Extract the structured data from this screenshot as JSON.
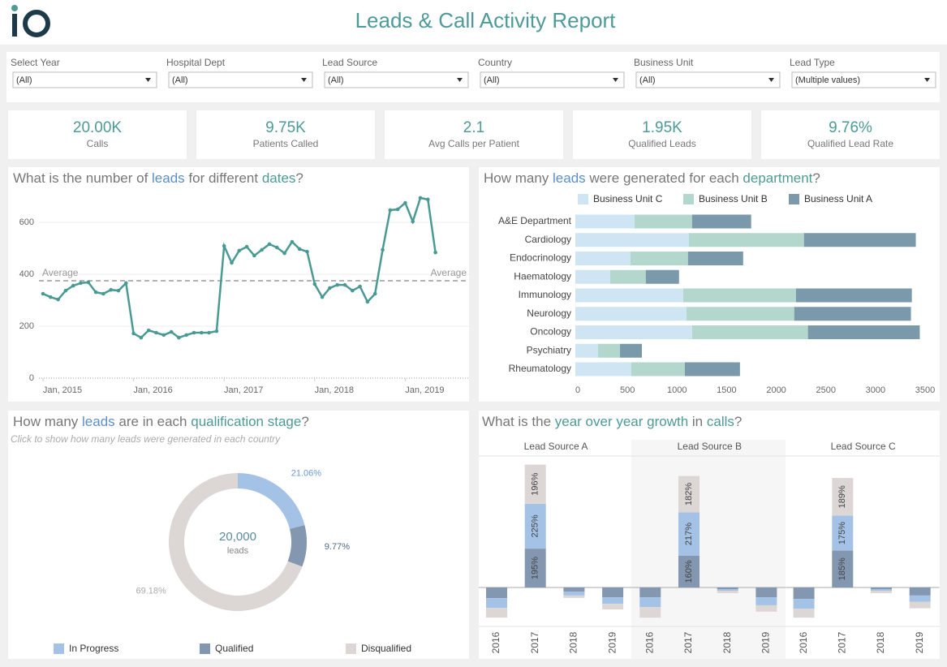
{
  "header": {
    "title": "Leads & Call Activity Report"
  },
  "filters": [
    {
      "label": "Select Year",
      "value": "(All)"
    },
    {
      "label": "Hospital Dept",
      "value": "(All)"
    },
    {
      "label": "Lead Source",
      "value": "(All)"
    },
    {
      "label": "Country",
      "value": "(All)"
    },
    {
      "label": "Business Unit",
      "value": "(All)"
    },
    {
      "label": "Lead Type",
      "value": "(Multiple values)"
    }
  ],
  "kpis": [
    {
      "value": "20.00K",
      "label": "Calls"
    },
    {
      "value": "9.75K",
      "label": "Patients Called"
    },
    {
      "value": "2.1",
      "label": "Avg Calls per Patient"
    },
    {
      "value": "1.95K",
      "label": "Qualified Leads"
    },
    {
      "value": "9.76%",
      "label": "Qualified Lead Rate"
    }
  ],
  "chart_data": [
    {
      "type": "line",
      "title_parts": [
        {
          "text": "What is the number of "
        },
        {
          "text": "leads",
          "color": "#5b8fc9"
        },
        {
          "text": " for different "
        },
        {
          "text": "dates",
          "color": "#4e9a98"
        },
        {
          "text": "?"
        }
      ],
      "x": [
        "2015-01",
        "2015-02",
        "2015-03",
        "2015-04",
        "2015-05",
        "2015-06",
        "2015-07",
        "2015-08",
        "2015-09",
        "2015-10",
        "2015-11",
        "2015-12",
        "2016-01",
        "2016-02",
        "2016-03",
        "2016-04",
        "2016-05",
        "2016-06",
        "2016-07",
        "2016-08",
        "2016-09",
        "2016-10",
        "2016-11",
        "2016-12",
        "2017-01",
        "2017-02",
        "2017-03",
        "2017-04",
        "2017-05",
        "2017-06",
        "2017-07",
        "2017-08",
        "2017-09",
        "2017-10",
        "2017-11",
        "2017-12",
        "2018-01",
        "2018-02",
        "2018-03",
        "2018-04",
        "2018-05",
        "2018-06",
        "2018-07",
        "2018-08",
        "2018-09",
        "2018-10",
        "2018-11",
        "2018-12",
        "2019-01",
        "2019-02",
        "2019-03",
        "2019-04",
        "2019-05"
      ],
      "values": [
        325,
        312,
        303,
        337,
        356,
        366,
        369,
        331,
        325,
        340,
        337,
        366,
        172,
        156,
        184,
        175,
        166,
        178,
        156,
        166,
        175,
        175,
        175,
        181,
        509,
        444,
        491,
        506,
        472,
        494,
        516,
        503,
        481,
        525,
        497,
        487,
        362,
        312,
        347,
        359,
        359,
        337,
        353,
        294,
        325,
        494,
        647,
        650,
        675,
        603,
        694,
        688,
        484
      ],
      "color": "#4a9a94",
      "ylim": [
        0,
        700
      ],
      "yticks": [
        0,
        200,
        400,
        600
      ],
      "xticks": [
        {
          "value": "2015-01",
          "label": "Jan, 2015"
        },
        {
          "value": "2016-01",
          "label": "Jan, 2016"
        },
        {
          "value": "2017-01",
          "label": "Jan, 2017"
        },
        {
          "value": "2018-01",
          "label": "Jan, 2018"
        },
        {
          "value": "2019-01",
          "label": "Jan, 2019"
        }
      ],
      "average": {
        "value": 375,
        "label": "Average"
      },
      "grid": true
    },
    {
      "type": "hbar",
      "title_parts": [
        {
          "text": "How many "
        },
        {
          "text": "leads",
          "color": "#5b8fc9"
        },
        {
          "text": " were generated for each "
        },
        {
          "text": "department",
          "color": "#4e9a98"
        },
        {
          "text": "?"
        }
      ],
      "categories": [
        "A&E Department",
        "Cardiology",
        "Endocrinology",
        "Haematology",
        "Immunology",
        "Neurology",
        "Oncology",
        "Psychiatry",
        "Rheumatology"
      ],
      "series": [
        {
          "name": "Business Unit C",
          "color": "#cfe5f3",
          "values": [
            596,
            1144,
            555,
            351,
            1087,
            1119,
            1176,
            229,
            564
          ]
        },
        {
          "name": "Business Unit B",
          "color": "#b3d7cc",
          "values": [
            580,
            1160,
            580,
            359,
            1136,
            1087,
            1168,
            221,
            539
          ]
        },
        {
          "name": "Business Unit A",
          "color": "#7a99aa",
          "values": [
            596,
            1127,
            556,
            335,
            1168,
            1176,
            1127,
            221,
            556
          ]
        }
      ],
      "xlim": [
        0,
        3500
      ],
      "xticks": [
        0,
        500,
        1000,
        1500,
        2000,
        2500,
        3000,
        3500
      ],
      "legend": "top"
    },
    {
      "type": "pie",
      "donut": true,
      "title_parts": [
        {
          "text": "How many "
        },
        {
          "text": "leads",
          "color": "#5b8fc9"
        },
        {
          "text": " are in each "
        },
        {
          "text": "qualification stage",
          "color": "#4e9a98"
        },
        {
          "text": "?"
        }
      ],
      "subtitle": "Click to show how many leads were generated in each country",
      "categories": [
        "In Progress",
        "Qualified",
        "Disqualified"
      ],
      "values": [
        21.06,
        9.77,
        69.18
      ],
      "value_labels": [
        "21.06%",
        "9.77%",
        "69.18%"
      ],
      "colors": [
        "#a4c2e6",
        "#8497b0",
        "#dcd6d5"
      ],
      "center_value": "20,000",
      "center_label": "leads",
      "legend": "bottom"
    },
    {
      "type": "panel_bar",
      "title_parts": [
        {
          "text": "What is the "
        },
        {
          "text": "year over year growth",
          "color": "#4e9a98"
        },
        {
          "text": " in "
        },
        {
          "text": "calls",
          "color": "#4e9a98"
        },
        {
          "text": "?"
        }
      ],
      "categories": [
        "2016",
        "2017",
        "2018",
        "2019"
      ],
      "ylim": [
        -195,
        659
      ],
      "panels": [
        {
          "title": "Lead Source A",
          "series": [
            {
              "color": "#8497b0",
              "values": [
                -53,
                195,
                -20,
                -49
              ],
              "value_labels": [
                null,
                "195%",
                null,
                null
              ]
            },
            {
              "color": "#a4c2e6",
              "values": [
                -49,
                225,
                -20,
                -33
              ],
              "value_labels": [
                null,
                "225%",
                null,
                null
              ]
            },
            {
              "color": "#dcd6d5",
              "values": [
                -49,
                196,
                -12,
                -28
              ],
              "value_labels": [
                null,
                "196%",
                null,
                null
              ]
            }
          ]
        },
        {
          "title": "Lead Source B",
          "series": [
            {
              "color": "#8497b0",
              "values": [
                -49,
                160,
                -8,
                -49
              ],
              "value_labels": [
                null,
                "160%",
                null,
                null
              ]
            },
            {
              "color": "#a4c2e6",
              "values": [
                -49,
                217,
                -8,
                -40
              ],
              "value_labels": [
                null,
                "217%",
                null,
                null
              ]
            },
            {
              "color": "#dcd6d5",
              "values": [
                -53,
                182,
                -12,
                -32
              ],
              "value_labels": [
                null,
                "182%",
                null,
                null
              ]
            }
          ]
        },
        {
          "title": "Lead Source C",
          "series": [
            {
              "color": "#8497b0",
              "values": [
                -57,
                185,
                -8,
                -40
              ],
              "value_labels": [
                null,
                "185%",
                null,
                null
              ]
            },
            {
              "color": "#a4c2e6",
              "values": [
                -49,
                175,
                -8,
                -32
              ],
              "value_labels": [
                null,
                "175%",
                null,
                null
              ]
            },
            {
              "color": "#dcd6d5",
              "values": [
                -45,
                189,
                -12,
                -32
              ],
              "value_labels": [
                null,
                "189%",
                null,
                null
              ]
            }
          ]
        }
      ]
    }
  ]
}
